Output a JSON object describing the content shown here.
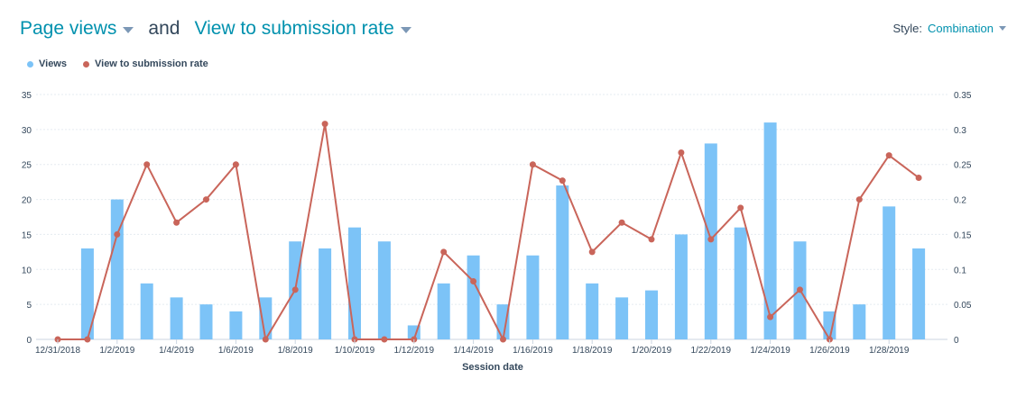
{
  "header": {
    "metric1": "Page views",
    "and": "and",
    "metric2": "View to submission rate",
    "style_label": "Style:",
    "style_value": "Combination"
  },
  "legend": [
    {
      "label": "Views",
      "color": "#7cc3f7"
    },
    {
      "label": "View to submission rate",
      "color": "#c9655a"
    }
  ],
  "chart_data": {
    "type": "bar",
    "xlabel": "Session date",
    "x_tick_labels": [
      "12/31/2018",
      "1/2/2019",
      "1/4/2019",
      "1/6/2019",
      "1/8/2019",
      "1/10/2019",
      "1/12/2019",
      "1/14/2019",
      "1/16/2019",
      "1/18/2019",
      "1/20/2019",
      "1/22/2019",
      "1/24/2019",
      "1/26/2019",
      "1/28/2019"
    ],
    "categories": [
      "12/31/2018",
      "1/1/2019",
      "1/2/2019",
      "1/3/2019",
      "1/4/2019",
      "1/5/2019",
      "1/6/2019",
      "1/7/2019",
      "1/8/2019",
      "1/9/2019",
      "1/10/2019",
      "1/11/2019",
      "1/12/2019",
      "1/13/2019",
      "1/14/2019",
      "1/15/2019",
      "1/16/2019",
      "1/17/2019",
      "1/18/2019",
      "1/19/2019",
      "1/20/2019",
      "1/21/2019",
      "1/22/2019",
      "1/23/2019",
      "1/24/2019",
      "1/25/2019",
      "1/26/2019",
      "1/27/2019",
      "1/28/2019",
      "1/29/2019"
    ],
    "y_left": {
      "ylim": [
        0,
        35
      ],
      "ticks": [
        "0",
        "5",
        "10",
        "15",
        "20",
        "25",
        "30",
        "35"
      ]
    },
    "y_right": {
      "ylim": [
        0,
        0.35
      ],
      "ticks": [
        "0",
        "0.05",
        "0.1",
        "0.15",
        "0.2",
        "0.25",
        "0.3",
        "0.35"
      ]
    },
    "grid": true,
    "series": [
      {
        "name": "Views",
        "type": "bar",
        "axis": "left",
        "color": "#7cc3f7",
        "values": [
          0,
          13,
          20,
          8,
          6,
          5,
          4,
          6,
          14,
          13,
          16,
          14,
          2,
          8,
          12,
          5,
          12,
          22,
          8,
          6,
          7,
          15,
          28,
          16,
          31,
          14,
          4,
          5,
          19,
          13
        ]
      },
      {
        "name": "View to submission rate",
        "type": "line",
        "axis": "right",
        "color": "#c9655a",
        "values": [
          0,
          0,
          0.15,
          0.25,
          0.167,
          0.2,
          0.25,
          0,
          0.071,
          0.308,
          0,
          0,
          0,
          0.125,
          0.083,
          0,
          0.25,
          0.227,
          0.125,
          0.167,
          0.143,
          0.267,
          0.143,
          0.188,
          0.032,
          0.071,
          0,
          0.2,
          0.263,
          0.231
        ]
      }
    ]
  }
}
